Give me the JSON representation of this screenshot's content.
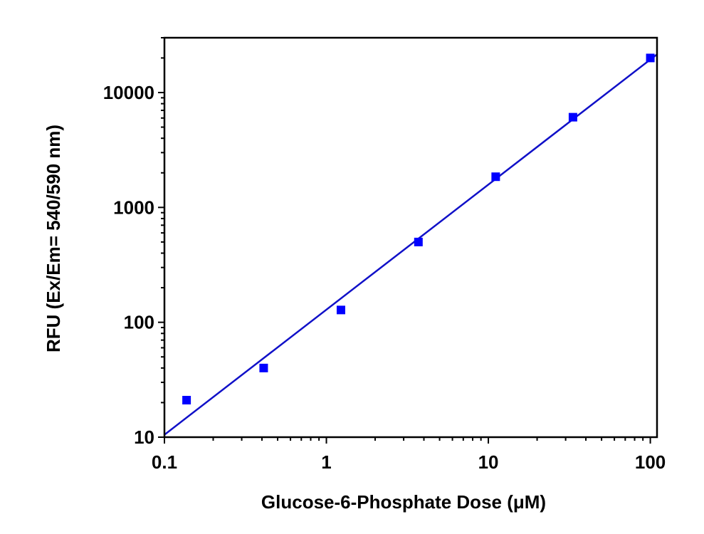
{
  "chart_data": {
    "type": "scatter",
    "x_scale": "log",
    "y_scale": "log",
    "xlabel": "Glucose-6-Phosphate Dose (μM)",
    "ylabel": "RFU (Ex/Em= 540/590 nm)",
    "xlim": [
      0.1,
      110
    ],
    "ylim": [
      10,
      30000
    ],
    "x_ticks": [
      0.1,
      1,
      10,
      100
    ],
    "x_tick_labels": [
      "0.1",
      "1",
      "10",
      "100"
    ],
    "y_ticks": [
      10,
      100,
      1000,
      10000
    ],
    "y_tick_labels": [
      "10",
      "100",
      "1000",
      "10000"
    ],
    "grid": false,
    "series": [
      {
        "color": "#0000ff",
        "marker": "square",
        "x": [
          0.137,
          0.41,
          1.23,
          3.7,
          11.1,
          33.3,
          100
        ],
        "y": [
          21,
          40,
          128,
          500,
          1850,
          6100,
          20000
        ]
      }
    ],
    "fit_line": {
      "color": "#1010c8",
      "x": [
        0.1,
        110
      ],
      "y": [
        10.5,
        21500
      ]
    }
  }
}
